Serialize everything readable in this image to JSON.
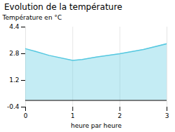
{
  "chart_data": {
    "type": "area",
    "title": "Evolution de la température",
    "xlabel": "heure par heure",
    "ylabel": "Température en °C",
    "x": [
      0,
      0.2,
      0.5,
      1.0,
      1.2,
      1.5,
      2.0,
      2.5,
      3.0
    ],
    "values": [
      3.1,
      2.95,
      2.7,
      2.4,
      2.45,
      2.6,
      2.8,
      3.05,
      3.4
    ],
    "baseline": 0,
    "color": "#56c8e0",
    "xlim": [
      0,
      3
    ],
    "ylim": [
      -0.4,
      4.4
    ],
    "xticks": [
      0,
      1,
      2,
      3
    ],
    "yticks": [
      -0.4,
      1.2,
      2.8,
      4.4
    ],
    "grid": "x"
  }
}
